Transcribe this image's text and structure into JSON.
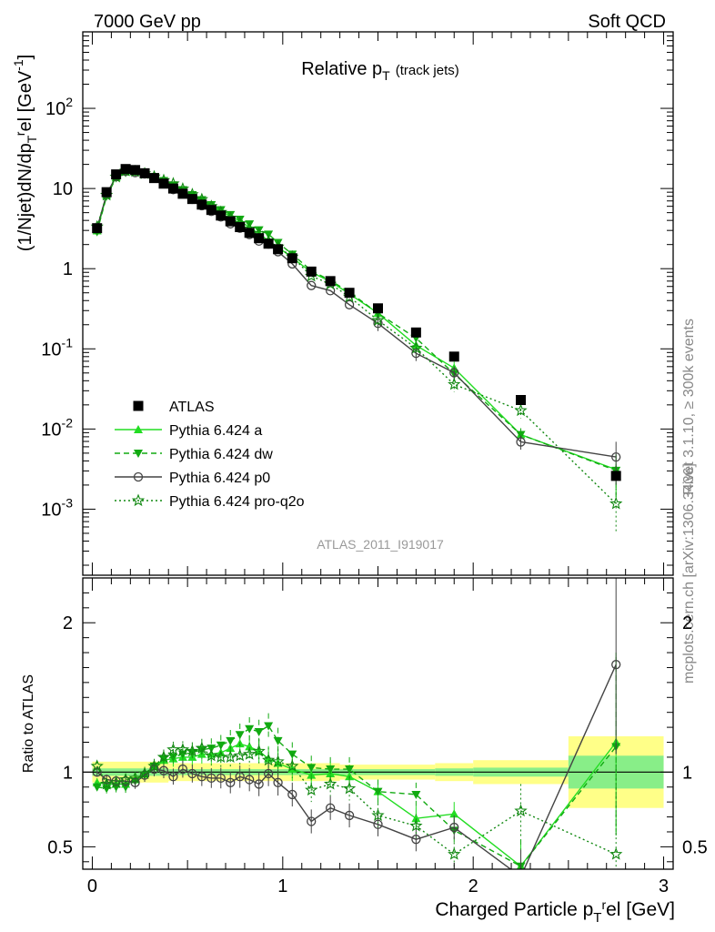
{
  "header": {
    "left": "7000 GeV pp",
    "right": "Soft QCD"
  },
  "side_text": {
    "rivet": "Rivet 3.1.10, ≥ 300k events",
    "mcplots": "mcplots.cern.ch [arXiv:1306.3436]"
  },
  "colors": {
    "atlas": "#000000",
    "a": "#22dd22",
    "dw": "#11aa11",
    "p0": "#444444",
    "proq2o": "#118811",
    "band_outer": "#ffff88",
    "band_inner": "#88ee88"
  },
  "chart_data": [
    {
      "type": "scatter",
      "title_main": "Relative p",
      "title_sub": "T",
      "title_suffix": "(track jets)",
      "ylabel": "(1/Njet)dN/dp",
      "ylabel_sub": "T",
      "ylabel_sup": "r",
      "ylabel_suffix": "el [GeV",
      "ylabel_unit_sup": "-1",
      "ylabel_close": "]",
      "watermark": "ATLAS_2011_I919017",
      "yscale": "log",
      "ylim": [
        0.00015,
        900
      ],
      "xlim": [
        -0.05,
        3.05
      ],
      "yticks": [
        {
          "value": 0.001,
          "base": "10",
          "exp": "-3"
        },
        {
          "value": 0.01,
          "base": "10",
          "exp": "-2"
        },
        {
          "value": 0.1,
          "base": "10",
          "exp": "-1"
        },
        {
          "value": 1,
          "base": "1",
          "exp": ""
        },
        {
          "value": 10,
          "base": "10",
          "exp": ""
        },
        {
          "value": 100,
          "base": "10",
          "exp": "2"
        }
      ],
      "legend_position": "lower-left",
      "legend": [
        {
          "key": "atlas",
          "label": "ATLAS"
        },
        {
          "key": "a",
          "label": "Pythia 6.424 a"
        },
        {
          "key": "dw",
          "label": "Pythia 6.424 dw"
        },
        {
          "key": "p0",
          "label": "Pythia 6.424 p0"
        },
        {
          "key": "proq2o",
          "label": "Pythia 6.424 pro-q2o"
        }
      ],
      "x": [
        0.025,
        0.075,
        0.125,
        0.175,
        0.225,
        0.275,
        0.325,
        0.375,
        0.425,
        0.475,
        0.525,
        0.575,
        0.625,
        0.675,
        0.725,
        0.775,
        0.825,
        0.875,
        0.925,
        0.975,
        1.05,
        1.15,
        1.25,
        1.35,
        1.5,
        1.7,
        1.9,
        2.25,
        2.75
      ],
      "atlas": [
        3.2,
        9.0,
        15.0,
        17.5,
        17.0,
        15.5,
        13.5,
        11.5,
        10.0,
        8.6,
        7.4,
        6.3,
        5.4,
        4.6,
        3.9,
        3.3,
        2.8,
        2.4,
        2.05,
        1.75,
        1.35,
        0.92,
        0.7,
        0.5,
        0.32,
        0.16,
        0.08,
        0.023,
        0.0026
      ],
      "series": [
        {
          "key": "a",
          "name": "Pythia 6.424 a",
          "ratio": [
            0.93,
            0.92,
            0.92,
            0.92,
            0.95,
            0.99,
            1.04,
            1.08,
            1.09,
            1.1,
            1.1,
            1.12,
            1.12,
            1.13,
            1.16,
            1.19,
            1.17,
            1.14,
            1.09,
            1.06,
            1.02,
            0.98,
            0.99,
            0.97,
            0.87,
            0.69,
            0.72,
            0.37,
            1.2
          ]
        },
        {
          "key": "dw",
          "name": "Pythia 6.424 dw",
          "ratio": [
            0.9,
            0.89,
            0.9,
            0.9,
            0.94,
            0.98,
            1.04,
            1.09,
            1.1,
            1.12,
            1.13,
            1.15,
            1.16,
            1.18,
            1.21,
            1.25,
            1.29,
            1.27,
            1.31,
            1.21,
            1.12,
            1.03,
            1.02,
            1.02,
            0.87,
            0.85,
            0.61,
            0.37,
            1.17
          ]
        },
        {
          "key": "p0",
          "name": "Pythia 6.424 p0",
          "ratio": [
            1.0,
            0.95,
            0.94,
            0.94,
            0.93,
            0.98,
            1.02,
            1.01,
            0.97,
            1.02,
            0.99,
            0.97,
            0.96,
            0.96,
            0.93,
            0.97,
            0.95,
            0.92,
            0.99,
            0.93,
            0.85,
            0.67,
            0.76,
            0.71,
            0.65,
            0.55,
            0.63,
            0.3,
            1.72
          ]
        },
        {
          "key": "proq2o",
          "name": "Pythia 6.424 pro-q2o",
          "ratio": [
            1.04,
            0.92,
            0.93,
            0.95,
            0.96,
            0.99,
            1.04,
            1.1,
            1.15,
            1.15,
            1.14,
            1.16,
            1.11,
            1.1,
            1.1,
            1.11,
            1.12,
            1.14,
            1.08,
            1.07,
            1.04,
            0.88,
            0.92,
            0.89,
            0.71,
            0.64,
            0.45,
            0.74,
            0.45
          ]
        }
      ]
    },
    {
      "type": "line",
      "ylabel": "Ratio to ATLAS",
      "xlabel": "Charged Particle p",
      "xlabel_sub": "T",
      "xlabel_sup": "r",
      "xlabel_suffix": "el [GeV]",
      "ylim": [
        0.35,
        2.3
      ],
      "xlim": [
        -0.05,
        3.05
      ],
      "xticks": [
        {
          "value": 0,
          "label": "0"
        },
        {
          "value": 1,
          "label": "1"
        },
        {
          "value": 2,
          "label": "2"
        },
        {
          "value": 3,
          "label": "3"
        }
      ],
      "yticks": [
        {
          "value": 0.5,
          "label": "0.5"
        },
        {
          "value": 1,
          "label": "1"
        },
        {
          "value": 2,
          "label": "2"
        }
      ],
      "bands": [
        {
          "x0": 0.0,
          "x1": 0.4,
          "outer": 0.07,
          "inner": 0.025
        },
        {
          "x0": 0.4,
          "x1": 1.3,
          "outer": 0.06,
          "inner": 0.02
        },
        {
          "x0": 1.3,
          "x1": 1.8,
          "outer": 0.05,
          "inner": 0.02
        },
        {
          "x0": 1.8,
          "x1": 2.0,
          "outer": 0.06,
          "inner": 0.025
        },
        {
          "x0": 2.0,
          "x1": 2.5,
          "outer": 0.08,
          "inner": 0.03
        },
        {
          "x0": 2.5,
          "x1": 3.0,
          "outer": 0.24,
          "inner": 0.11
        }
      ]
    }
  ]
}
